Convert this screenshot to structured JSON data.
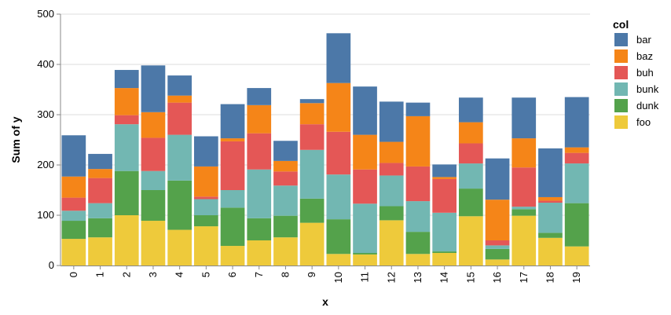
{
  "chart_data": {
    "type": "bar",
    "stacked": true,
    "xlabel": "x",
    "ylabel": "Sum of y",
    "ylim": [
      0,
      500
    ],
    "yticks": [
      "0",
      "100",
      "200",
      "300",
      "400",
      "500"
    ],
    "categories": [
      "0",
      "1",
      "2",
      "3",
      "4",
      "5",
      "6",
      "7",
      "8",
      "9",
      "10",
      "11",
      "12",
      "13",
      "14",
      "15",
      "16",
      "17",
      "18",
      "19"
    ],
    "legend": {
      "title": "col",
      "position": "right"
    },
    "series": [
      {
        "name": "foo",
        "color": "#eeca3b",
        "values": [
          53,
          56,
          100,
          89,
          71,
          78,
          39,
          50,
          56,
          85,
          23,
          22,
          90,
          23,
          25,
          98,
          12,
          99,
          55,
          38
        ]
      },
      {
        "name": "dunk",
        "color": "#54a24b",
        "values": [
          36,
          38,
          88,
          61,
          98,
          22,
          76,
          44,
          43,
          48,
          69,
          3,
          28,
          44,
          3,
          55,
          21,
          13,
          10,
          86
        ]
      },
      {
        "name": "bunk",
        "color": "#72b7b2",
        "values": [
          20,
          30,
          93,
          38,
          91,
          32,
          35,
          97,
          60,
          97,
          89,
          98,
          61,
          61,
          77,
          50,
          7,
          5,
          60,
          79
        ]
      },
      {
        "name": "buh",
        "color": "#e45756",
        "values": [
          26,
          50,
          18,
          66,
          64,
          5,
          97,
          72,
          28,
          51,
          85,
          68,
          25,
          69,
          67,
          40,
          10,
          78,
          4,
          21
        ]
      },
      {
        "name": "baz",
        "color": "#f58518",
        "values": [
          42,
          18,
          54,
          51,
          14,
          60,
          6,
          56,
          21,
          42,
          97,
          69,
          42,
          100,
          4,
          42,
          81,
          58,
          7,
          11
        ]
      },
      {
        "name": "bar",
        "color": "#4c78a8",
        "values": [
          82,
          30,
          36,
          93,
          40,
          60,
          68,
          34,
          40,
          8,
          99,
          96,
          80,
          27,
          25,
          49,
          82,
          81,
          97,
          100
        ]
      }
    ]
  }
}
